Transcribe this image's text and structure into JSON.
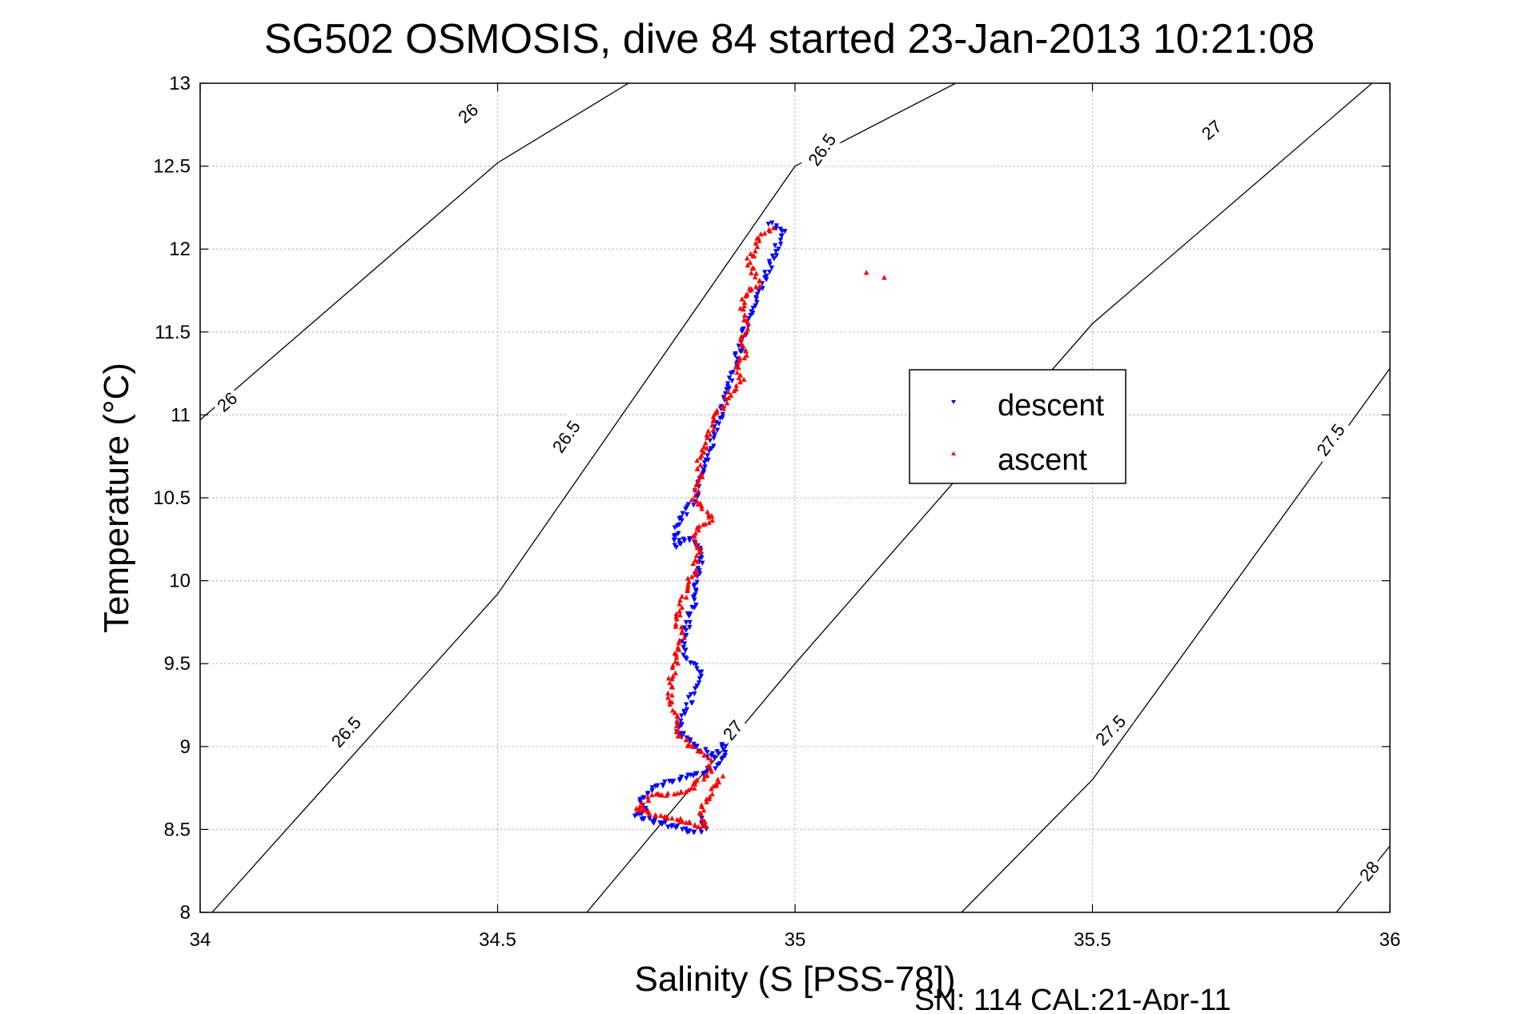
{
  "chart_data": {
    "type": "scatter",
    "title": "SG502 OSMOSIS, dive 84 started 23-Jan-2013 10:21:08",
    "xlabel": "Salinity (S [PSS-78])",
    "ylabel": "Temperature (°C)",
    "footer": "SN: 114  CAL:21-Apr-11",
    "xlim": [
      34,
      36
    ],
    "ylim": [
      8,
      13
    ],
    "xticks": [
      "34",
      "34.5",
      "35",
      "35.5",
      "36"
    ],
    "yticks": [
      "8",
      "8.5",
      "9",
      "9.5",
      "10",
      "10.5",
      "11",
      "11.5",
      "12",
      "12.5",
      "13"
    ],
    "grid": true,
    "legend_position": "right",
    "colors": {
      "descent": "#0000ff",
      "ascent": "#ff0000",
      "contour": "#000000",
      "grid": "#b4b4b4"
    },
    "contours": [
      {
        "level": 26,
        "points": [
          [
            34.0,
            10.97
          ],
          [
            34.5,
            12.52
          ],
          [
            34.72,
            13.0
          ]
        ],
        "labels": [
          {
            "text": "26",
            "x": 34.045,
            "y": 11.08
          },
          {
            "text": "26",
            "x": 34.45,
            "y": 12.82
          }
        ]
      },
      {
        "level": 26.5,
        "points": [
          [
            34.02,
            8.0
          ],
          [
            34.5,
            9.92
          ],
          [
            35.0,
            12.5
          ],
          [
            35.27,
            13.0
          ]
        ],
        "labels": [
          {
            "text": "26.5",
            "x": 34.245,
            "y": 9.09
          },
          {
            "text": "26.5",
            "x": 34.615,
            "y": 10.87
          },
          {
            "text": "26.5",
            "x": 35.045,
            "y": 12.6
          }
        ]
      },
      {
        "level": 27,
        "points": [
          [
            34.65,
            8.0
          ],
          [
            35.0,
            9.5
          ],
          [
            35.5,
            11.55
          ],
          [
            35.97,
            13.0
          ]
        ],
        "labels": [
          {
            "text": "27",
            "x": 34.895,
            "y": 9.1
          },
          {
            "text": "27",
            "x": 35.7,
            "y": 12.72
          }
        ]
      },
      {
        "level": 27.5,
        "points": [
          [
            35.28,
            8.0
          ],
          [
            35.5,
            8.8
          ],
          [
            36.0,
            11.28
          ]
        ],
        "labels": [
          {
            "text": "27.5",
            "x": 35.53,
            "y": 9.1
          },
          {
            "text": "27.5",
            "x": 35.9,
            "y": 10.85
          }
        ]
      },
      {
        "level": 28,
        "points": [
          [
            35.91,
            8.0
          ],
          [
            36.0,
            8.4
          ]
        ],
        "labels": [
          {
            "text": "28",
            "x": 35.965,
            "y": 8.25
          }
        ]
      }
    ],
    "series": [
      {
        "name": "descent",
        "marker": "triangle-down",
        "path": [
          [
            34.96,
            12.16
          ],
          [
            34.98,
            12.1
          ],
          [
            34.97,
            12.02
          ],
          [
            34.96,
            11.92
          ],
          [
            34.95,
            11.82
          ],
          [
            34.94,
            11.74
          ],
          [
            34.93,
            11.66
          ],
          [
            34.92,
            11.56
          ],
          [
            34.91,
            11.44
          ],
          [
            34.9,
            11.3
          ],
          [
            34.89,
            11.18
          ],
          [
            34.88,
            11.06
          ],
          [
            34.87,
            10.96
          ],
          [
            34.86,
            10.84
          ],
          [
            34.85,
            10.72
          ],
          [
            34.84,
            10.6
          ],
          [
            34.83,
            10.48
          ],
          [
            34.82,
            10.42
          ],
          [
            34.805,
            10.36
          ],
          [
            34.8,
            10.28
          ],
          [
            34.8,
            10.2
          ],
          [
            34.82,
            10.26
          ],
          [
            34.84,
            10.2
          ],
          [
            34.84,
            10.1
          ],
          [
            34.83,
            9.98
          ],
          [
            34.83,
            9.86
          ],
          [
            34.82,
            9.74
          ],
          [
            34.81,
            9.62
          ],
          [
            34.82,
            9.52
          ],
          [
            34.84,
            9.44
          ],
          [
            34.83,
            9.34
          ],
          [
            34.82,
            9.24
          ],
          [
            34.81,
            9.14
          ],
          [
            34.8,
            9.1
          ],
          [
            34.82,
            9.04
          ],
          [
            34.85,
            8.96
          ],
          [
            34.86,
            8.92
          ],
          [
            34.88,
            9.02
          ],
          [
            34.88,
            8.94
          ],
          [
            34.86,
            8.86
          ],
          [
            34.82,
            8.82
          ],
          [
            34.77,
            8.76
          ],
          [
            34.75,
            8.7
          ],
          [
            34.74,
            8.66
          ],
          [
            34.75,
            8.62
          ],
          [
            34.73,
            8.58
          ],
          [
            34.83,
            8.48
          ],
          [
            34.85,
            8.5
          ],
          [
            34.84,
            8.6
          ]
        ]
      },
      {
        "name": "ascent",
        "marker": "triangle-up",
        "path": [
          [
            34.96,
            12.14
          ],
          [
            34.94,
            12.06
          ],
          [
            34.93,
            11.98
          ],
          [
            34.92,
            11.92
          ],
          [
            34.93,
            11.86
          ],
          [
            34.94,
            11.8
          ],
          [
            34.92,
            11.74
          ],
          [
            34.91,
            11.66
          ],
          [
            34.92,
            11.56
          ],
          [
            34.91,
            11.46
          ],
          [
            34.92,
            11.38
          ],
          [
            34.9,
            11.3
          ],
          [
            34.91,
            11.22
          ],
          [
            34.89,
            11.12
          ],
          [
            34.87,
            11.02
          ],
          [
            34.86,
            10.92
          ],
          [
            34.85,
            10.82
          ],
          [
            34.84,
            10.72
          ],
          [
            34.84,
            10.6
          ],
          [
            34.83,
            10.5
          ],
          [
            34.84,
            10.46
          ],
          [
            34.85,
            10.42
          ],
          [
            34.86,
            10.38
          ],
          [
            34.84,
            10.32
          ],
          [
            34.83,
            10.24
          ],
          [
            34.84,
            10.16
          ],
          [
            34.83,
            10.06
          ],
          [
            34.82,
            9.98
          ],
          [
            34.81,
            9.86
          ],
          [
            34.8,
            9.76
          ],
          [
            34.81,
            9.66
          ],
          [
            34.8,
            9.58
          ],
          [
            34.8,
            9.5
          ],
          [
            34.79,
            9.4
          ],
          [
            34.79,
            9.28
          ],
          [
            34.8,
            9.18
          ],
          [
            34.8,
            9.1
          ],
          [
            34.82,
            9.02
          ],
          [
            34.85,
            8.96
          ],
          [
            34.86,
            8.86
          ],
          [
            34.84,
            8.8
          ],
          [
            34.82,
            8.74
          ],
          [
            34.79,
            8.72
          ],
          [
            34.76,
            8.7
          ],
          [
            34.74,
            8.64
          ],
          [
            34.73,
            8.62
          ],
          [
            34.85,
            8.52
          ],
          [
            34.84,
            8.6
          ],
          [
            34.86,
            8.74
          ],
          [
            34.88,
            8.84
          ]
        ],
        "outliers": [
          [
            35.12,
            11.86
          ],
          [
            35.15,
            11.83
          ]
        ]
      }
    ]
  }
}
